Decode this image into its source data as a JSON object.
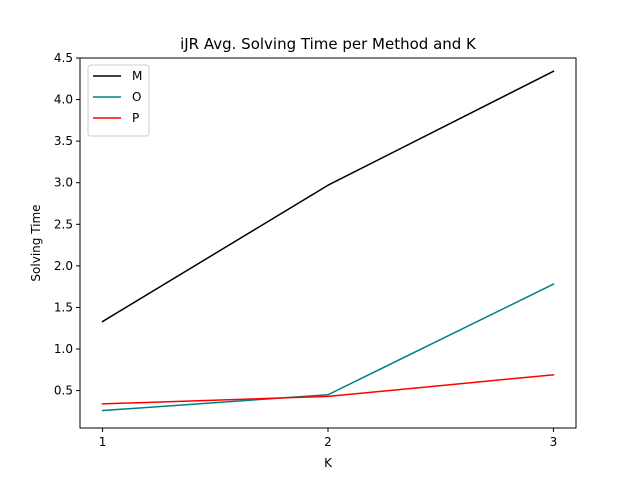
{
  "chart_data": {
    "type": "line",
    "title": "iJR Avg. Solving Time per Method and K",
    "xlabel": "K",
    "ylabel": "Solving Time",
    "x": [
      1,
      2,
      3
    ],
    "x_ticks": [
      "1",
      "2",
      "3"
    ],
    "y_ticks": [
      "0.5",
      "1.0",
      "1.5",
      "2.0",
      "2.5",
      "3.0",
      "3.5",
      "4.0",
      "4.5"
    ],
    "xlim": [
      0.9,
      3.1
    ],
    "ylim": [
      0.05,
      4.5
    ],
    "grid": false,
    "legend_position": "top-left",
    "series": [
      {
        "name": "M",
        "color": "#000000",
        "values": [
          1.33,
          2.97,
          4.34
        ]
      },
      {
        "name": "O",
        "color": "#008080",
        "values": [
          0.26,
          0.45,
          1.78
        ]
      },
      {
        "name": "P",
        "color": "#ff0000",
        "values": [
          0.34,
          0.43,
          0.69
        ]
      }
    ]
  }
}
